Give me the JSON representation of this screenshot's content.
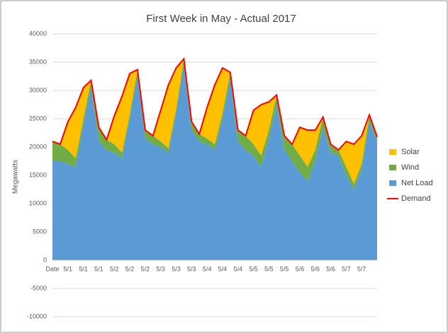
{
  "chart_data": {
    "type": "stacked_area",
    "title": "First Week in May - Actual 2017",
    "y_label": "Megawatts",
    "categories": [
      "Date",
      null,
      "5/1",
      null,
      "5/1",
      null,
      "5/1",
      null,
      "5/2",
      null,
      "5/2",
      null,
      "5/2",
      null,
      "5/3",
      null,
      "5/3",
      null,
      "5/3",
      null,
      "5/4",
      null,
      "5/4",
      null,
      "5/4",
      null,
      "5/5",
      null,
      "5/5",
      null,
      "5/5",
      null,
      "5/6",
      null,
      "5/6",
      null,
      "5/6",
      null,
      "5/7",
      null,
      "5/7",
      null,
      null
    ],
    "series": [
      {
        "name": "Solar",
        "color": "#ffc000",
        "kind": "area",
        "values": [
          0,
          0,
          5000,
          9000,
          5500,
          0,
          0,
          0,
          5000,
          10000,
          7200,
          0,
          0,
          0,
          5500,
          11200,
          7300,
          0,
          0,
          0,
          5500,
          10500,
          8000,
          0,
          0,
          0,
          6000,
          9000,
          5000,
          0,
          0,
          0,
          5000,
          6500,
          3500,
          0,
          0,
          0,
          4500,
          7000,
          5000,
          0,
          0
        ]
      },
      {
        "name": "Wind",
        "color": "#70ad47",
        "kind": "area",
        "values": [
          3500,
          3000,
          2500,
          1500,
          1000,
          1300,
          2500,
          1800,
          1500,
          1000,
          800,
          1200,
          1500,
          1500,
          1000,
          800,
          700,
          1100,
          1500,
          1300,
          1000,
          1000,
          1000,
          1200,
          2000,
          2500,
          2000,
          2000,
          1500,
          1700,
          2500,
          3000,
          3000,
          2500,
          2000,
          1800,
          1500,
          1000,
          1500,
          1000,
          1000,
          1200,
          800
        ]
      },
      {
        "name": "Net Load",
        "color": "#5b9bd5",
        "kind": "area",
        "values": [
          17500,
          17500,
          17000,
          16500,
          24000,
          30500,
          21000,
          19500,
          19000,
          18000,
          25000,
          32500,
          21500,
          20500,
          20000,
          19000,
          26000,
          34500,
          23000,
          21000,
          20500,
          19500,
          25000,
          32000,
          21000,
          19500,
          18500,
          16500,
          21500,
          27500,
          19500,
          17500,
          15500,
          14000,
          17500,
          23500,
          19000,
          18500,
          15000,
          12500,
          16000,
          24500,
          21000
        ]
      },
      {
        "name": "Demand",
        "color": "#ff0000",
        "kind": "line",
        "values": [
          21000,
          20500,
          24500,
          27000,
          30500,
          31800,
          23500,
          21300,
          25500,
          29000,
          33000,
          33700,
          23000,
          22000,
          26500,
          31000,
          34000,
          35600,
          24500,
          22300,
          27000,
          31000,
          34000,
          33200,
          23000,
          22000,
          26500,
          27500,
          28000,
          29200,
          22000,
          20500,
          23500,
          23000,
          23000,
          25300,
          20500,
          19500,
          21000,
          20500,
          22000,
          25700,
          21800
        ]
      }
    ],
    "stack_order": [
      "Net Load",
      "Wind",
      "Solar"
    ],
    "ylim": [
      -10000,
      40000
    ],
    "yticks": [
      -10000,
      -5000,
      0,
      5000,
      10000,
      15000,
      20000,
      25000,
      30000,
      35000,
      40000
    ],
    "grid": true,
    "legend": "right"
  }
}
